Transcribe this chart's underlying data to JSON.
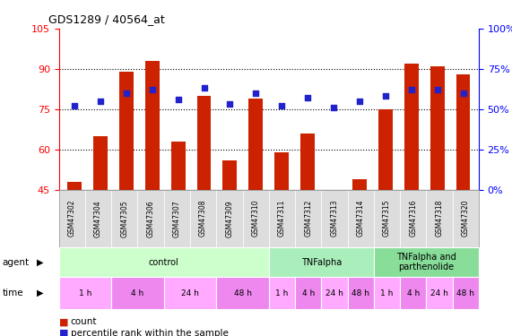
{
  "title": "GDS1289 / 40564_at",
  "samples": [
    "GSM47302",
    "GSM47304",
    "GSM47305",
    "GSM47306",
    "GSM47307",
    "GSM47308",
    "GSM47309",
    "GSM47310",
    "GSM47311",
    "GSM47312",
    "GSM47313",
    "GSM47314",
    "GSM47315",
    "GSM47316",
    "GSM47318",
    "GSM47320"
  ],
  "counts": [
    48,
    65,
    89,
    93,
    63,
    80,
    56,
    79,
    59,
    66,
    45,
    49,
    75,
    92,
    91,
    88
  ],
  "percentiles": [
    52,
    55,
    60,
    62,
    56,
    63,
    53,
    60,
    52,
    57,
    51,
    55,
    58,
    62,
    62,
    60
  ],
  "ylim_left": [
    45,
    105
  ],
  "ylim_right": [
    0,
    100
  ],
  "yticks_left": [
    45,
    60,
    75,
    90,
    105
  ],
  "yticks_right": [
    0,
    25,
    50,
    75,
    100
  ],
  "ytick_labels_right": [
    "0%",
    "25%",
    "50%",
    "75%",
    "100%"
  ],
  "bar_color": "#cc2200",
  "dot_color": "#2222cc",
  "bg_color": "#ffffff",
  "agent_defs": [
    {
      "start": 0,
      "end": 7,
      "color": "#ccffcc",
      "label": "control"
    },
    {
      "start": 8,
      "end": 11,
      "color": "#aaeebb",
      "label": "TNFalpha"
    },
    {
      "start": 12,
      "end": 15,
      "color": "#88dd99",
      "label": "TNFalpha and\nparthenolide"
    }
  ],
  "time_defs": [
    {
      "start": 0,
      "end": 1,
      "color": "#ffaaff",
      "label": "1 h"
    },
    {
      "start": 2,
      "end": 3,
      "color": "#ee88ee",
      "label": "4 h"
    },
    {
      "start": 4,
      "end": 5,
      "color": "#ffaaff",
      "label": "24 h"
    },
    {
      "start": 6,
      "end": 7,
      "color": "#ee88ee",
      "label": "48 h"
    },
    {
      "start": 8,
      "end": 8,
      "color": "#ffaaff",
      "label": "1 h"
    },
    {
      "start": 9,
      "end": 9,
      "color": "#ee88ee",
      "label": "4 h"
    },
    {
      "start": 10,
      "end": 10,
      "color": "#ffaaff",
      "label": "24 h"
    },
    {
      "start": 11,
      "end": 11,
      "color": "#ee88ee",
      "label": "48 h"
    },
    {
      "start": 12,
      "end": 12,
      "color": "#ffaaff",
      "label": "1 h"
    },
    {
      "start": 13,
      "end": 13,
      "color": "#ee88ee",
      "label": "4 h"
    },
    {
      "start": 14,
      "end": 14,
      "color": "#ffaaff",
      "label": "24 h"
    },
    {
      "start": 15,
      "end": 15,
      "color": "#ee88ee",
      "label": "48 h"
    }
  ]
}
